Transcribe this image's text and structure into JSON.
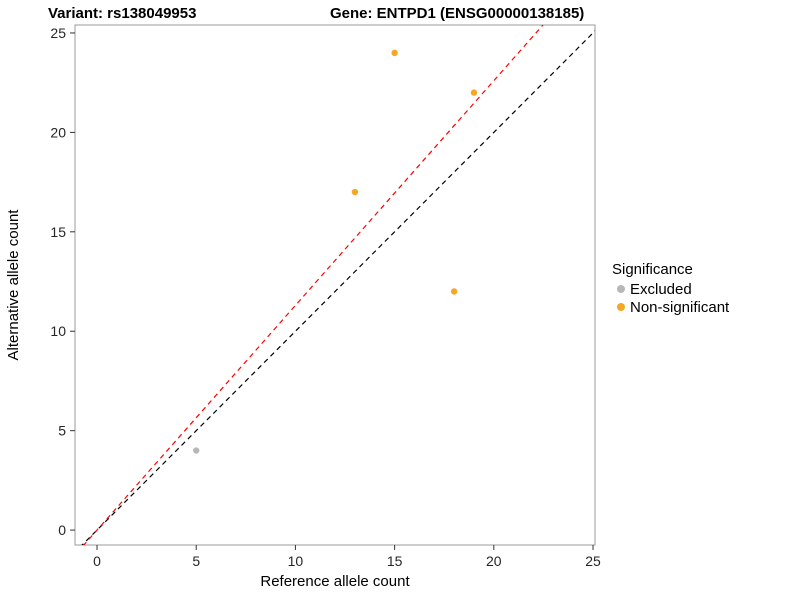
{
  "titles": {
    "left": "Variant: rs138049953",
    "right": "Gene: ENTPD1 (ENSG00000138185)"
  },
  "chart_data": {
    "type": "scatter",
    "xlabel": "Reference allele count",
    "ylabel": "Alternative allele count",
    "xlim": [
      -1.11,
      25.1
    ],
    "ylim": [
      -0.75,
      25.4
    ],
    "xticks": [
      0,
      5,
      10,
      15,
      20,
      25
    ],
    "yticks": [
      0,
      5,
      10,
      15,
      20,
      25
    ],
    "grid": "off",
    "panel_border_color": "#9b9b9b",
    "series": [
      {
        "name": "Excluded",
        "color": "#b8b8b8",
        "points": [
          {
            "x": 5,
            "y": 4
          }
        ]
      },
      {
        "name": "Non-significant",
        "color": "#f5a623",
        "points": [
          {
            "x": 13,
            "y": 17
          },
          {
            "x": 15,
            "y": 24
          },
          {
            "x": 18,
            "y": 12
          },
          {
            "x": 19,
            "y": 22
          }
        ]
      }
    ],
    "lines": [
      {
        "name": "identity",
        "slope": 1.0,
        "intercept": 0,
        "color": "#000000",
        "dash": "5 4"
      },
      {
        "name": "fit",
        "slope": 1.13,
        "intercept": 0,
        "color": "#ff0000",
        "dash": "5 4"
      }
    ],
    "legend": {
      "title": "Significance",
      "position": "right",
      "entries": [
        "Excluded",
        "Non-significant"
      ]
    }
  }
}
